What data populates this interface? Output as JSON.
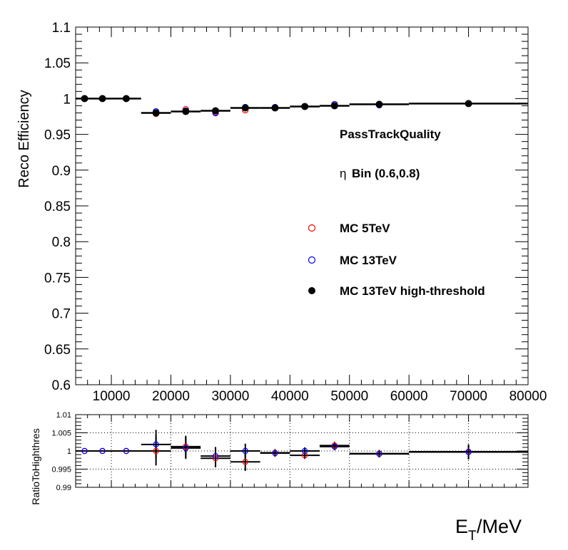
{
  "chart_data": [
    {
      "type": "scatter",
      "xlabel_main": "E",
      "xlabel_sub": "T",
      "xlabel_unit": "/MeV",
      "ylabel": "Reco Efficiency",
      "xlim": [
        4000,
        80000
      ],
      "ylim": [
        0.6,
        1.1
      ],
      "x_ticks": [
        10000,
        20000,
        30000,
        40000,
        50000,
        60000,
        70000,
        80000
      ],
      "y_ticks": [
        0.6,
        0.65,
        0.7,
        0.75,
        0.8,
        0.85,
        0.9,
        0.95,
        1,
        1.05,
        1.1
      ],
      "y_tick_labels": [
        "0.6",
        "0.65",
        "0.7",
        "0.75",
        "0.8",
        "0.85",
        "0.9",
        "0.95",
        "1",
        "1.05",
        "1.1"
      ],
      "grid": false,
      "annotations": {
        "cut": "PassTrackQuality",
        "eta_symbol": "η",
        "eta_bin": "Bin (0.6,0.8)"
      },
      "bins": [
        [
          4000,
          7000
        ],
        [
          7000,
          10000
        ],
        [
          10000,
          15000
        ],
        [
          15000,
          20000
        ],
        [
          20000,
          25000
        ],
        [
          25000,
          30000
        ],
        [
          30000,
          35000
        ],
        [
          35000,
          40000
        ],
        [
          40000,
          45000
        ],
        [
          45000,
          50000
        ],
        [
          50000,
          60000
        ],
        [
          60000,
          80000
        ]
      ],
      "series": [
        {
          "name": "MC 5TeV",
          "color": "#ff0000",
          "marker": "open-circle",
          "x": [
            5500,
            8500,
            12500,
            17500,
            22500,
            27500,
            32500,
            37500,
            42500,
            47500,
            55000,
            70000
          ],
          "y": [
            1.0,
            1.0,
            1.0,
            0.979,
            0.985,
            0.981,
            0.984,
            0.987,
            0.989,
            0.992,
            0.992,
            0.993
          ]
        },
        {
          "name": "MC 13TeV",
          "color": "#0000ff",
          "marker": "open-circle",
          "x": [
            5500,
            8500,
            12500,
            17500,
            22500,
            27500,
            32500,
            37500,
            42500,
            47500,
            55000,
            70000
          ],
          "y": [
            1.0,
            1.0,
            1.0,
            0.982,
            0.983,
            0.98,
            0.988,
            0.988,
            0.989,
            0.992,
            0.991,
            0.993
          ]
        },
        {
          "name": "MC 13TeV high-threshold",
          "color": "#000000",
          "marker": "filled-circle",
          "x": [
            5500,
            8500,
            12500,
            17500,
            22500,
            27500,
            32500,
            37500,
            42500,
            47500,
            55000,
            70000
          ],
          "y": [
            1.0,
            1.0,
            1.0,
            0.98,
            0.982,
            0.983,
            0.987,
            0.987,
            0.989,
            0.99,
            0.992,
            0.993
          ]
        }
      ]
    },
    {
      "type": "scatter",
      "ylabel": "RatioToHighthres",
      "xlim": [
        4000,
        80000
      ],
      "ylim": [
        0.99,
        1.01
      ],
      "x_ticks": [
        10000,
        20000,
        30000,
        40000,
        50000,
        60000,
        70000,
        80000
      ],
      "y_ticks": [
        0.99,
        0.995,
        1,
        1.005,
        1.01
      ],
      "y_tick_labels": [
        "0.99",
        "0.995",
        "1",
        "1.005",
        "1.01"
      ],
      "grid": true,
      "series": [
        {
          "name": "MC 5TeV",
          "color": "#ff0000",
          "marker": "open-circle",
          "x": [
            5500,
            8500,
            12500,
            17500,
            22500,
            27500,
            32500,
            37500,
            42500,
            47500,
            55000,
            70000
          ],
          "y": [
            1.0,
            1.0,
            1.0,
            1.0,
            1.0012,
            0.998,
            0.997,
            0.9995,
            0.9988,
            1.0015,
            0.9993,
            0.9998
          ],
          "err": [
            0.0,
            0.0,
            0.0,
            0.004,
            0.003,
            0.0025,
            0.0025,
            0.001,
            0.001,
            0.001,
            0.001,
            0.002
          ]
        },
        {
          "name": "MC 13TeV",
          "color": "#0000ff",
          "marker": "open-circle",
          "x": [
            5500,
            8500,
            12500,
            17500,
            22500,
            27500,
            32500,
            37500,
            42500,
            47500,
            55000,
            70000
          ],
          "y": [
            1.0,
            1.0,
            1.0,
            1.0018,
            1.0008,
            0.9986,
            1.0,
            0.9994,
            1.0,
            1.0012,
            0.9992,
            0.9997
          ],
          "err": [
            0.0,
            0.0,
            0.0,
            0.004,
            0.003,
            0.0025,
            0.002,
            0.001,
            0.001,
            0.001,
            0.001,
            0.002
          ]
        }
      ]
    }
  ]
}
